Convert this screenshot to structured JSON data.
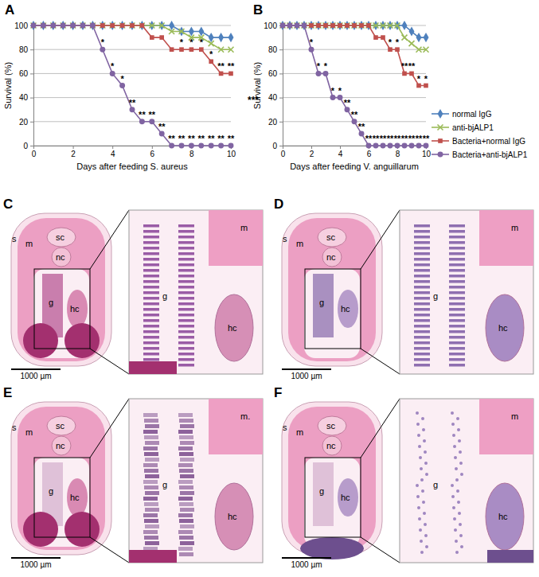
{
  "chart_data": [
    {
      "type": "line",
      "title": "A",
      "xlabel": "Days after feeding S. aureus",
      "ylabel": "Survival (%)",
      "x": [
        0,
        0.5,
        1,
        1.5,
        2,
        2.5,
        3,
        3.5,
        4,
        4.5,
        5,
        5.5,
        6,
        6.5,
        7,
        7.5,
        8,
        8.5,
        9,
        9.5,
        10
      ],
      "xlim": [
        0,
        10
      ],
      "xticks": [
        0,
        2,
        4,
        6,
        8,
        10
      ],
      "ylim": [
        0,
        100
      ],
      "yticks": [
        0,
        20,
        40,
        60,
        80,
        100
      ],
      "grid": true,
      "series": [
        {
          "name": "normal IgG",
          "color": "#4f81bd",
          "marker": "diamond",
          "values": [
            100,
            100,
            100,
            100,
            100,
            100,
            100,
            100,
            100,
            100,
            100,
            100,
            100,
            100,
            100,
            95,
            95,
            95,
            90,
            90,
            90
          ]
        },
        {
          "name": "anti-bjALP1",
          "color": "#9bbb59",
          "marker": "x",
          "values": [
            100,
            100,
            100,
            100,
            100,
            100,
            100,
            100,
            100,
            100,
            100,
            100,
            100,
            100,
            95,
            95,
            90,
            90,
            85,
            80,
            80
          ]
        },
        {
          "name": "Bacteria+normal IgG",
          "color": "#c0504d",
          "marker": "square",
          "values": [
            100,
            100,
            100,
            100,
            100,
            100,
            100,
            100,
            100,
            100,
            100,
            100,
            90,
            90,
            80,
            80,
            80,
            80,
            70,
            60,
            60
          ]
        },
        {
          "name": "Bacteria+anti-bjALP1",
          "color": "#8064a2",
          "marker": "circle",
          "values": [
            100,
            100,
            100,
            100,
            100,
            100,
            100,
            80,
            60,
            50,
            30,
            20,
            20,
            10,
            0,
            0,
            0,
            0,
            0,
            0,
            0
          ]
        }
      ],
      "annotations": [
        {
          "x": 3.5,
          "y": 80,
          "text": "*"
        },
        {
          "x": 4,
          "y": 60,
          "text": "*"
        },
        {
          "x": 4.5,
          "y": 50,
          "text": "*"
        },
        {
          "x": 5,
          "y": 30,
          "text": "**"
        },
        {
          "x": 5.5,
          "y": 20,
          "text": "**"
        },
        {
          "x": 6,
          "y": 20,
          "text": "**"
        },
        {
          "x": 6.5,
          "y": 10,
          "text": "**"
        },
        {
          "x": 7,
          "y": 0,
          "text": "**"
        },
        {
          "x": 7.5,
          "y": 0,
          "text": "**"
        },
        {
          "x": 8,
          "y": 0,
          "text": "**"
        },
        {
          "x": 8.5,
          "y": 0,
          "text": "**"
        },
        {
          "x": 9,
          "y": 0,
          "text": "**"
        },
        {
          "x": 9.5,
          "y": 0,
          "text": "**"
        },
        {
          "x": 10,
          "y": 0,
          "text": "**"
        },
        {
          "x": 7.5,
          "y": 80,
          "text": "*"
        },
        {
          "x": 8,
          "y": 80,
          "text": "*"
        },
        {
          "x": 8.5,
          "y": 80,
          "text": "*"
        },
        {
          "x": 9,
          "y": 70,
          "text": "*"
        },
        {
          "x": 9.5,
          "y": 60,
          "text": "**"
        },
        {
          "x": 10,
          "y": 60,
          "text": "**"
        }
      ]
    },
    {
      "type": "line",
      "title": "B",
      "xlabel": "Days after feeding V. anguillarum",
      "ylabel": "Survival (%)",
      "x": [
        0,
        0.5,
        1,
        1.5,
        2,
        2.5,
        3,
        3.5,
        4,
        4.5,
        5,
        5.5,
        6,
        6.5,
        7,
        7.5,
        8,
        8.5,
        9,
        9.5,
        10
      ],
      "xlim": [
        0,
        10
      ],
      "xticks": [
        0,
        2,
        4,
        6,
        8,
        10
      ],
      "ylim": [
        0,
        100
      ],
      "yticks": [
        0,
        20,
        40,
        60,
        80,
        100
      ],
      "grid": true,
      "legend": "right",
      "series": [
        {
          "name": "normal IgG",
          "color": "#4f81bd",
          "marker": "diamond",
          "values": [
            100,
            100,
            100,
            100,
            100,
            100,
            100,
            100,
            100,
            100,
            100,
            100,
            100,
            100,
            100,
            100,
            100,
            100,
            95,
            90,
            90
          ]
        },
        {
          "name": "anti-bjALP1",
          "color": "#9bbb59",
          "marker": "x",
          "values": [
            100,
            100,
            100,
            100,
            100,
            100,
            100,
            100,
            100,
            100,
            100,
            100,
            100,
            100,
            100,
            100,
            100,
            90,
            85,
            80,
            80
          ]
        },
        {
          "name": "Bacteria+normal IgG",
          "color": "#c0504d",
          "marker": "square",
          "values": [
            100,
            100,
            100,
            100,
            100,
            100,
            100,
            100,
            100,
            100,
            100,
            100,
            100,
            90,
            90,
            80,
            80,
            60,
            60,
            50,
            50
          ]
        },
        {
          "name": "Bacteria+anti-bjALP1",
          "color": "#8064a2",
          "marker": "circle",
          "values": [
            100,
            100,
            100,
            100,
            80,
            60,
            60,
            40,
            40,
            30,
            20,
            10,
            0,
            0,
            0,
            0,
            0,
            0,
            0,
            0,
            0
          ]
        }
      ],
      "annotations": [
        {
          "x": 2,
          "y": 80,
          "text": "*"
        },
        {
          "x": 2.5,
          "y": 60,
          "text": "*"
        },
        {
          "x": 3,
          "y": 60,
          "text": "*"
        },
        {
          "x": 3.5,
          "y": 40,
          "text": "*"
        },
        {
          "x": 4,
          "y": 40,
          "text": "*"
        },
        {
          "x": 4.5,
          "y": 30,
          "text": "**"
        },
        {
          "x": 5,
          "y": 20,
          "text": "**"
        },
        {
          "x": 5.5,
          "y": 10,
          "text": "**"
        },
        {
          "x": 6,
          "y": 0,
          "text": "**"
        },
        {
          "x": 6.5,
          "y": 0,
          "text": "**"
        },
        {
          "x": 7,
          "y": 0,
          "text": "**"
        },
        {
          "x": 7.5,
          "y": 0,
          "text": "**"
        },
        {
          "x": 8,
          "y": 0,
          "text": "**"
        },
        {
          "x": 8.5,
          "y": 0,
          "text": "**"
        },
        {
          "x": 9,
          "y": 0,
          "text": "**"
        },
        {
          "x": 9.5,
          "y": 0,
          "text": "**"
        },
        {
          "x": 10,
          "y": 0,
          "text": "**"
        },
        {
          "x": 7.5,
          "y": 80,
          "text": "*"
        },
        {
          "x": 8,
          "y": 80,
          "text": "*"
        },
        {
          "x": 8.5,
          "y": 60,
          "text": "**"
        },
        {
          "x": 9,
          "y": 60,
          "text": "**"
        },
        {
          "x": 9.5,
          "y": 50,
          "text": "*"
        },
        {
          "x": 10,
          "y": 50,
          "text": "*"
        }
      ]
    }
  ],
  "stray_marks": [
    "***",
    "**"
  ],
  "histology_panels": [
    {
      "label": "C",
      "overview_labels": [
        "s",
        "m",
        "sc",
        "nc",
        "g",
        "hc"
      ],
      "inset_labels": [
        "g",
        "hc",
        "m"
      ],
      "scale_bar": "1000 µm"
    },
    {
      "label": "D",
      "overview_labels": [
        "s",
        "m",
        "sc",
        "nc",
        "g",
        "hc"
      ],
      "inset_labels": [
        "g",
        "hc",
        "m"
      ],
      "scale_bar": "1000 µm"
    },
    {
      "label": "E",
      "overview_labels": [
        "s",
        "m",
        "sc",
        "nc",
        "g",
        "hc"
      ],
      "inset_labels": [
        "g",
        "hc",
        "m."
      ],
      "scale_bar": "1000 µm"
    },
    {
      "label": "F",
      "overview_labels": [
        "s",
        "m",
        "sc",
        "nc",
        "g",
        "hc"
      ],
      "inset_labels": [
        "g",
        "hc",
        "m"
      ],
      "scale_bar": "1000 µm"
    }
  ]
}
